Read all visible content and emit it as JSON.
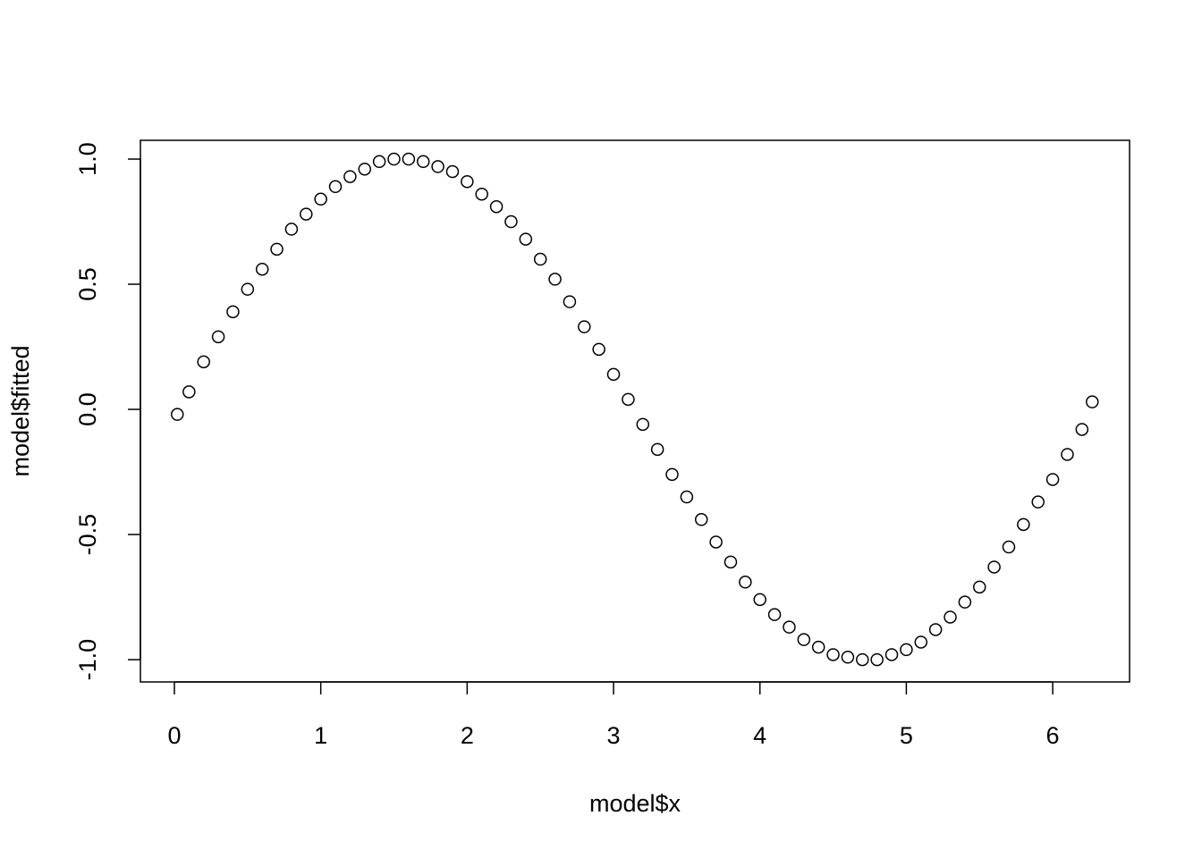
{
  "chart_data": {
    "type": "scatter",
    "xlabel": "model$x",
    "ylabel": "model$fitted",
    "x": [
      0.02,
      0.1,
      0.2,
      0.3,
      0.4,
      0.5,
      0.6,
      0.7,
      0.8,
      0.9,
      1.0,
      1.1,
      1.2,
      1.3,
      1.4,
      1.5,
      1.6,
      1.7,
      1.8,
      1.9,
      2.0,
      2.1,
      2.2,
      2.3,
      2.4,
      2.5,
      2.6,
      2.7,
      2.8,
      2.9,
      3.0,
      3.1,
      3.2,
      3.3,
      3.4,
      3.5,
      3.6,
      3.7,
      3.8,
      3.9,
      4.0,
      4.1,
      4.2,
      4.3,
      4.4,
      4.5,
      4.6,
      4.7,
      4.8,
      4.9,
      5.0,
      5.1,
      5.2,
      5.3,
      5.4,
      5.5,
      5.6,
      5.7,
      5.8,
      5.9,
      6.0,
      6.1,
      6.2,
      6.27
    ],
    "values": [
      -0.02,
      0.07,
      0.19,
      0.29,
      0.39,
      0.48,
      0.56,
      0.64,
      0.72,
      0.78,
      0.84,
      0.89,
      0.93,
      0.96,
      0.99,
      1.0,
      1.0,
      0.99,
      0.97,
      0.95,
      0.91,
      0.86,
      0.81,
      0.75,
      0.68,
      0.6,
      0.52,
      0.43,
      0.33,
      0.24,
      0.14,
      0.04,
      -0.06,
      -0.16,
      -0.26,
      -0.35,
      -0.44,
      -0.53,
      -0.61,
      -0.69,
      -0.76,
      -0.82,
      -0.87,
      -0.92,
      -0.95,
      -0.98,
      -0.99,
      -1.0,
      -1.0,
      -0.98,
      -0.96,
      -0.93,
      -0.88,
      -0.83,
      -0.77,
      -0.71,
      -0.63,
      -0.55,
      -0.46,
      -0.37,
      -0.28,
      -0.18,
      -0.08,
      0.03
    ],
    "color": "#000000",
    "xlim": [
      -0.232,
      6.525
    ],
    "xticks": [
      0,
      1,
      2,
      3,
      4,
      5,
      6
    ],
    "ylim": [
      -1.089,
      1.075
    ],
    "yticks": [
      {
        "value": -1,
        "label": "-1.0"
      },
      -0.5,
      {
        "value": 0,
        "label": "0.0"
      },
      0.5,
      {
        "value": 1,
        "label": "1.0"
      }
    ],
    "grid": false
  }
}
